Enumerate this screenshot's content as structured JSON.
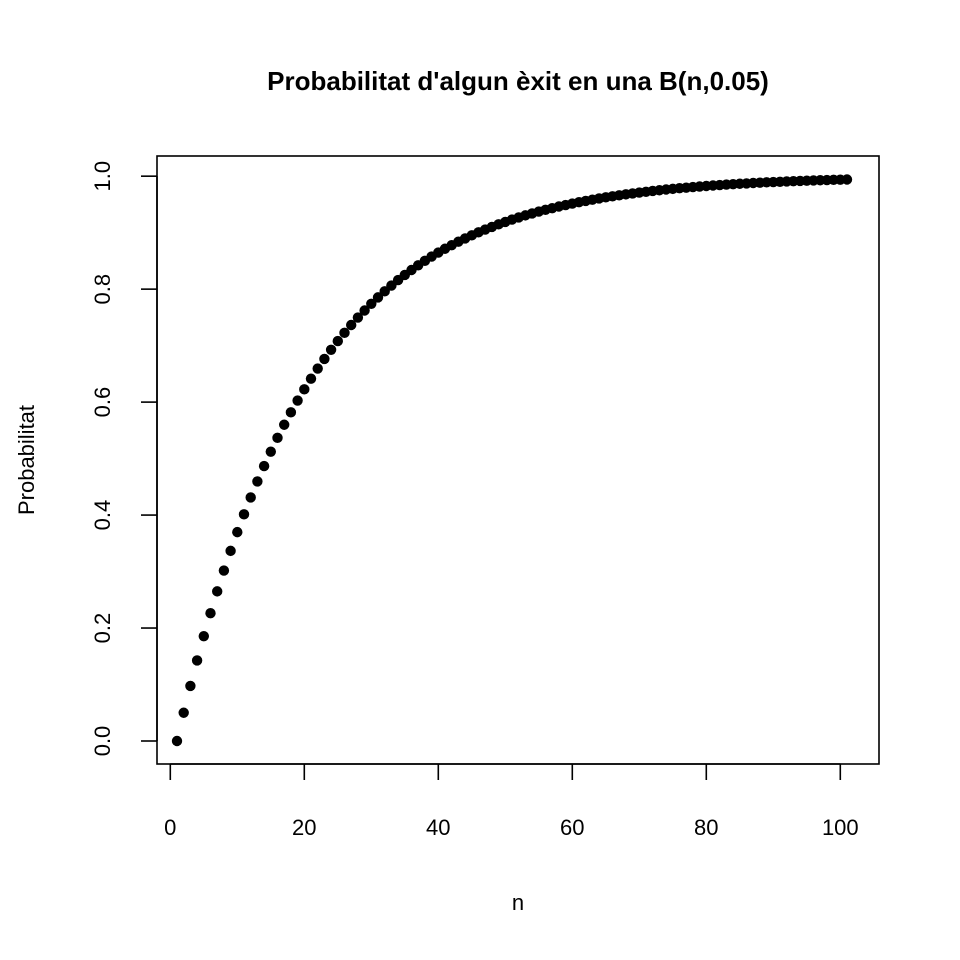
{
  "chart_data": {
    "type": "scatter",
    "title": "Probabilitat d'algun èxit en una B(n,0.05)",
    "xlabel": "n",
    "ylabel": "Probabilitat",
    "xlim": [
      1,
      101
    ],
    "ylim": [
      0,
      0.995
    ],
    "xticks": [
      0,
      20,
      40,
      60,
      80,
      100
    ],
    "xtick_labels": [
      "0",
      "20",
      "40",
      "60",
      "80",
      "100"
    ],
    "yticks": [
      0,
      0.2,
      0.4,
      0.6,
      0.8,
      1.0
    ],
    "ytick_labels": [
      "0.0",
      "0.2",
      "0.4",
      "0.6",
      "0.8",
      "1.0"
    ],
    "grid": false,
    "marker_color": "#000000",
    "series": [
      {
        "x": [
          1,
          2,
          3,
          4,
          5,
          6,
          7,
          8,
          9,
          10,
          11,
          12,
          13,
          14,
          15,
          16,
          17,
          18,
          19,
          20,
          21,
          22,
          23,
          24,
          25,
          26,
          27,
          28,
          29,
          30,
          31,
          32,
          33,
          34,
          35,
          36,
          37,
          38,
          39,
          40,
          41,
          42,
          43,
          44,
          45,
          46,
          47,
          48,
          49,
          50,
          51,
          52,
          53,
          54,
          55,
          56,
          57,
          58,
          59,
          60,
          61,
          62,
          63,
          64,
          65,
          66,
          67,
          68,
          69,
          70,
          71,
          72,
          73,
          74,
          75,
          76,
          77,
          78,
          79,
          80,
          81,
          82,
          83,
          84,
          85,
          86,
          87,
          88,
          89,
          90,
          91,
          92,
          93,
          94,
          95,
          96,
          97,
          98,
          99,
          100,
          101
        ],
        "y": [
          0.0,
          0.05,
          0.0975,
          0.1426,
          0.1855,
          0.2262,
          0.2649,
          0.3017,
          0.3366,
          0.3698,
          0.4013,
          0.4312,
          0.4596,
          0.4867,
          0.5123,
          0.5367,
          0.5599,
          0.5819,
          0.6028,
          0.6226,
          0.6415,
          0.6594,
          0.6765,
          0.6926,
          0.708,
          0.7226,
          0.7365,
          0.7497,
          0.7622,
          0.7741,
          0.7854,
          0.7961,
          0.8063,
          0.816,
          0.8252,
          0.8339,
          0.8422,
          0.8501,
          0.8576,
          0.8647,
          0.8715,
          0.8779,
          0.884,
          0.8898,
          0.8953,
          0.9006,
          0.9055,
          0.9102,
          0.9147,
          0.919,
          0.9231,
          0.9269,
          0.9306,
          0.934,
          0.9373,
          0.9405,
          0.9434,
          0.9463,
          0.9489,
          0.9515,
          0.9539,
          0.9562,
          0.9584,
          0.9605,
          0.9625,
          0.9644,
          0.9661,
          0.9678,
          0.9694,
          0.971,
          0.9724,
          0.9738,
          0.9751,
          0.9764,
          0.9775,
          0.9787,
          0.9797,
          0.9807,
          0.9817,
          0.9826,
          0.9835,
          0.9843,
          0.9851,
          0.9858,
          0.9866,
          0.9872,
          0.9879,
          0.9885,
          0.9891,
          0.9896,
          0.9901,
          0.9906,
          0.9911,
          0.9916,
          0.992,
          0.9924,
          0.9928,
          0.9931,
          0.9935,
          0.9938,
          0.9941
        ]
      }
    ]
  }
}
